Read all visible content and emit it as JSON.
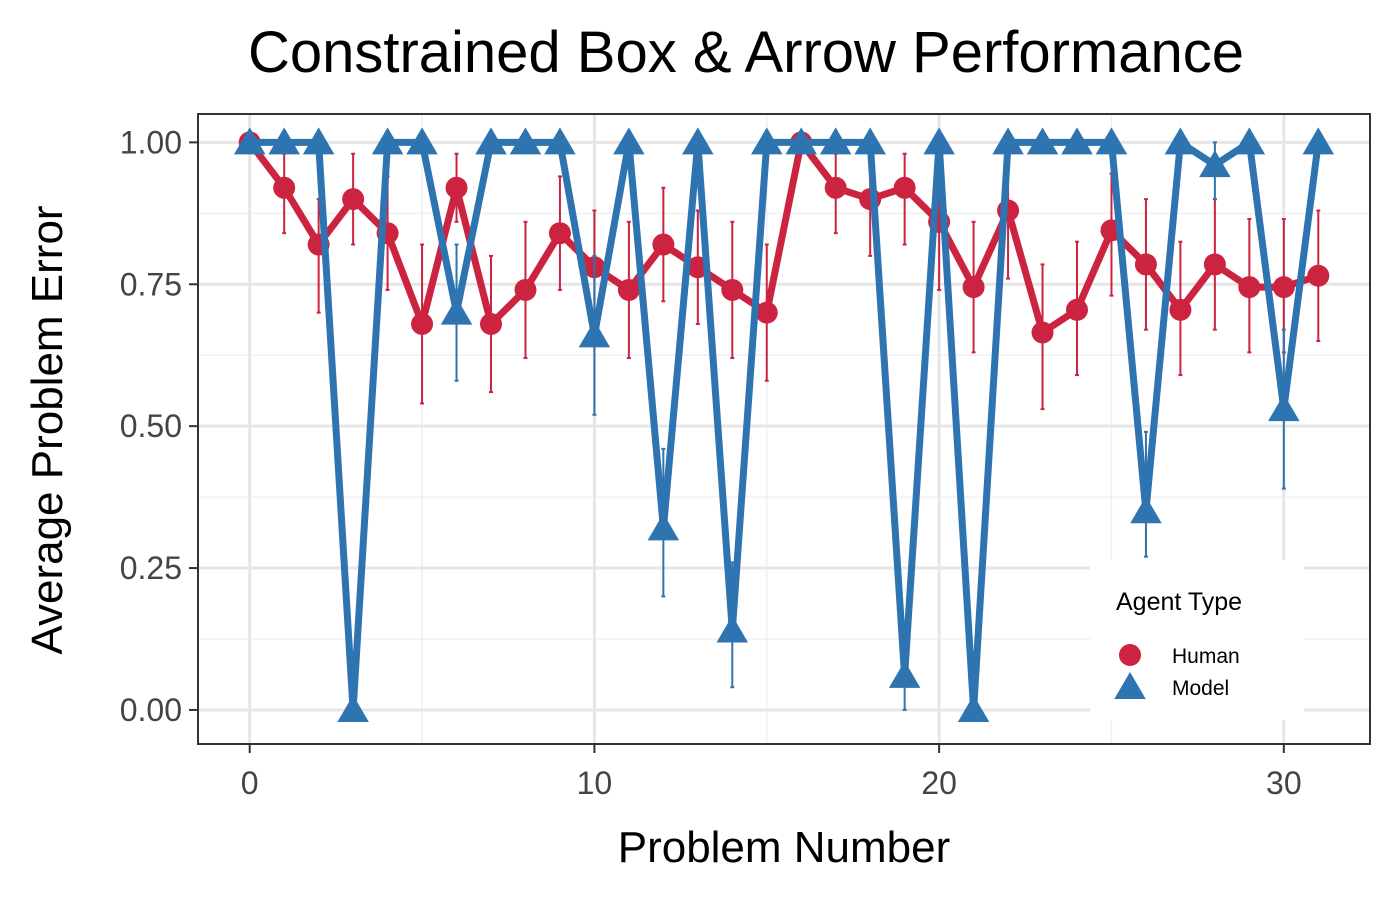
{
  "chart_data": {
    "type": "line",
    "title": "Constrained Box & Arrow Performance",
    "xlabel": "Problem Number",
    "ylabel": "Average Problem Error",
    "xlim": [
      -1.5,
      32.5
    ],
    "ylim": [
      -0.06,
      1.05
    ],
    "x_ticks": [
      0,
      10,
      20,
      30
    ],
    "x_tick_labels": [
      "0",
      "10",
      "20",
      "30"
    ],
    "y_ticks": [
      0,
      0.25,
      0.5,
      0.75,
      1.0
    ],
    "y_tick_labels": [
      "0.00",
      "0.25",
      "0.50",
      "0.75",
      "1.00"
    ],
    "x_minor_ticks": [
      5,
      15,
      25
    ],
    "y_minor_ticks": [
      0.125,
      0.375,
      0.625,
      0.875
    ],
    "grid": true,
    "x": [
      0,
      1,
      2,
      3,
      4,
      5,
      6,
      7,
      8,
      9,
      10,
      11,
      12,
      13,
      14,
      15,
      16,
      17,
      18,
      19,
      20,
      21,
      22,
      23,
      24,
      25,
      26,
      27,
      28,
      29,
      30,
      31
    ],
    "series": [
      {
        "name": "Human",
        "color": "#CC2440",
        "marker": "circle",
        "values": [
          1.0,
          0.92,
          0.82,
          0.9,
          0.84,
          0.68,
          0.92,
          0.68,
          0.74,
          0.84,
          0.78,
          0.74,
          0.82,
          0.78,
          0.74,
          0.7,
          1.0,
          0.92,
          0.9,
          0.92,
          0.86,
          0.745,
          0.88,
          0.665,
          0.705,
          0.845,
          0.785,
          0.705,
          0.785,
          0.745,
          0.745,
          0.765
        ],
        "err_low": [
          1.0,
          0.84,
          0.7,
          0.82,
          0.74,
          0.54,
          0.86,
          0.56,
          0.62,
          0.74,
          0.68,
          0.62,
          0.72,
          0.68,
          0.62,
          0.58,
          1.0,
          0.84,
          0.8,
          0.82,
          0.74,
          0.63,
          0.76,
          0.53,
          0.59,
          0.73,
          0.67,
          0.59,
          0.67,
          0.63,
          0.63,
          0.65
        ],
        "err_high": [
          1.0,
          0.98,
          0.9,
          0.98,
          0.94,
          0.82,
          0.98,
          0.8,
          0.86,
          0.94,
          0.88,
          0.86,
          0.92,
          0.88,
          0.86,
          0.82,
          1.0,
          0.98,
          0.98,
          0.98,
          0.98,
          0.86,
          0.98,
          0.785,
          0.825,
          0.945,
          0.9,
          0.825,
          0.9,
          0.865,
          0.865,
          0.88
        ]
      },
      {
        "name": "Model",
        "color": "#2E74B0",
        "marker": "triangle",
        "values": [
          1.0,
          1.0,
          1.0,
          0.0,
          1.0,
          1.0,
          0.7,
          1.0,
          1.0,
          1.0,
          0.66,
          1.0,
          0.32,
          1.0,
          0.14,
          1.0,
          1.0,
          1.0,
          1.0,
          0.06,
          1.0,
          0.0,
          1.0,
          1.0,
          1.0,
          1.0,
          0.35,
          1.0,
          0.96,
          1.0,
          0.53,
          1.0
        ],
        "err_low": [
          1.0,
          1.0,
          1.0,
          0.0,
          1.0,
          1.0,
          0.58,
          1.0,
          1.0,
          1.0,
          0.52,
          1.0,
          0.2,
          1.0,
          0.04,
          1.0,
          1.0,
          1.0,
          1.0,
          0.0,
          1.0,
          0.0,
          1.0,
          1.0,
          1.0,
          1.0,
          0.27,
          1.0,
          0.9,
          1.0,
          0.39,
          1.0
        ],
        "err_high": [
          1.0,
          1.0,
          1.0,
          0.0,
          1.0,
          1.0,
          0.82,
          1.0,
          1.0,
          1.0,
          0.8,
          1.0,
          0.46,
          1.0,
          0.26,
          1.0,
          1.0,
          1.0,
          1.0,
          0.14,
          1.0,
          0.0,
          1.0,
          1.0,
          1.0,
          1.0,
          0.49,
          1.0,
          1.0,
          1.0,
          0.67,
          1.0
        ]
      }
    ],
    "legend": {
      "title": "Agent Type",
      "position": "bottom-right",
      "entries": [
        "Human",
        "Model"
      ]
    },
    "background": "#ffffff",
    "grid_color": "#e6e6e6",
    "panel_border_color": "#333333"
  }
}
